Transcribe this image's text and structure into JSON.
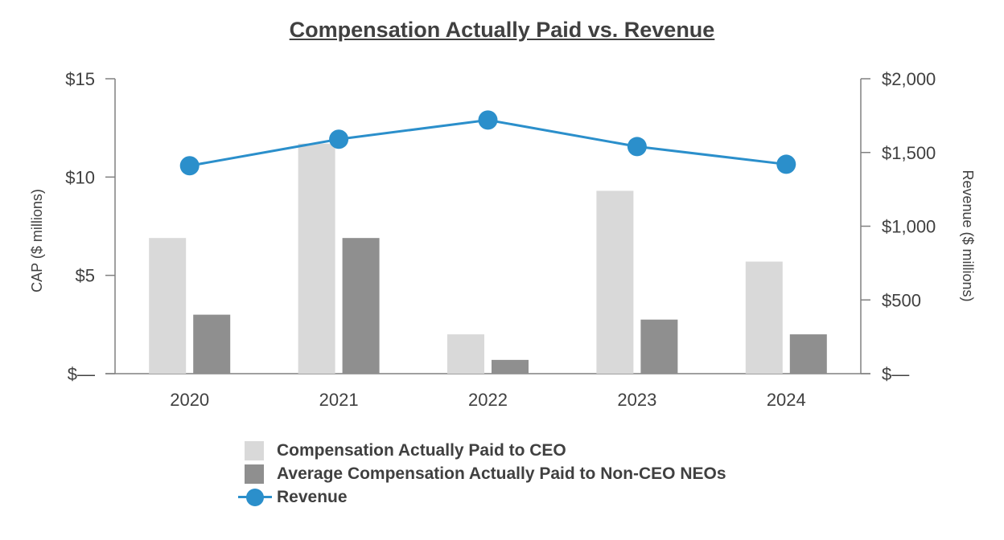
{
  "colors": {
    "ceo": "#d9d9d9",
    "neo": "#8f8f8f",
    "revenue": "#2b8fcb",
    "axis": "#808080",
    "text": "#404040"
  },
  "chart_data": {
    "type": "bar",
    "title": "Compensation Actually Paid vs. Revenue",
    "categories": [
      "2020",
      "2021",
      "2022",
      "2023",
      "2024"
    ],
    "ylabel": "CAP ($ millions)",
    "y2label": "Revenue ($ millions)",
    "ylim": [
      0,
      15
    ],
    "y2lim": [
      0,
      2000
    ],
    "yticks": [
      {
        "value": 0,
        "label": "$—"
      },
      {
        "value": 5,
        "label": "$5"
      },
      {
        "value": 10,
        "label": "$10"
      },
      {
        "value": 15,
        "label": "$15"
      }
    ],
    "y2ticks": [
      {
        "value": 0,
        "label": "$—"
      },
      {
        "value": 500,
        "label": "$500"
      },
      {
        "value": 1000,
        "label": "$1,000"
      },
      {
        "value": 1500,
        "label": "$1,500"
      },
      {
        "value": 2000,
        "label": "$2,000"
      }
    ],
    "series": [
      {
        "name": "Compensation Actually Paid to CEO",
        "kind": "bar",
        "axis": "left",
        "values": [
          6.9,
          11.7,
          2.0,
          9.3,
          5.7
        ]
      },
      {
        "name": "Average Compensation Actually Paid to Non-CEO NEOs",
        "kind": "bar",
        "axis": "left",
        "values": [
          3.0,
          6.9,
          0.7,
          2.75,
          2.0
        ]
      },
      {
        "name": "Revenue",
        "kind": "line",
        "axis": "right",
        "values": [
          1410,
          1590,
          1720,
          1540,
          1420
        ]
      }
    ],
    "legend_position": "bottom"
  }
}
